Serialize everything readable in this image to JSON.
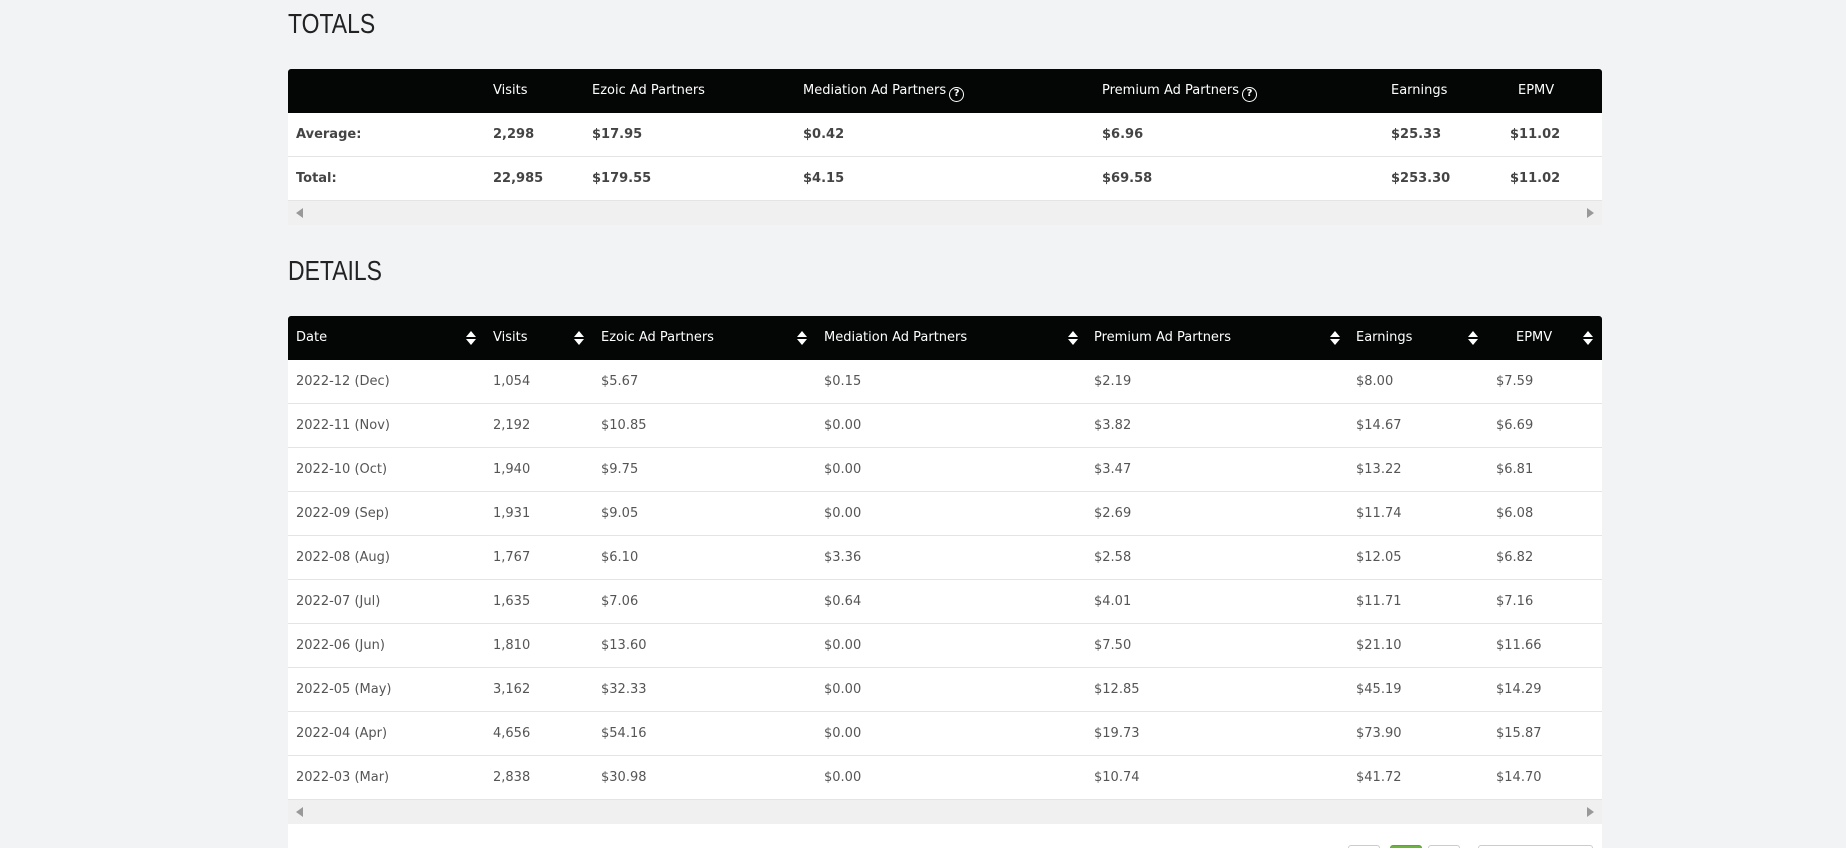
{
  "totals": {
    "title": "TOTALS",
    "headers": [
      "",
      "Visits",
      "Ezoic Ad Partners",
      "Mediation Ad Partners",
      "Premium Ad Partners",
      "Earnings",
      "EPMV"
    ],
    "rows": [
      {
        "label": "Average:",
        "visits": "2,298",
        "ezoic": "$17.95",
        "mediation": "$0.42",
        "premium": "$6.96",
        "earnings": "$25.33",
        "epmv": "$11.02"
      },
      {
        "label": "Total:",
        "visits": "22,985",
        "ezoic": "$179.55",
        "mediation": "$4.15",
        "premium": "$69.58",
        "earnings": "$253.30",
        "epmv": "$11.02"
      }
    ]
  },
  "details": {
    "title": "DETAILS",
    "headers": [
      "Date",
      "Visits",
      "Ezoic Ad Partners",
      "Mediation Ad Partners",
      "Premium Ad Partners",
      "Earnings",
      "EPMV"
    ],
    "rows": [
      {
        "date": "2022-12 (Dec)",
        "visits": "1,054",
        "ezoic": "$5.67",
        "mediation": "$0.15",
        "premium": "$2.19",
        "earnings": "$8.00",
        "epmv": "$7.59"
      },
      {
        "date": "2022-11 (Nov)",
        "visits": "2,192",
        "ezoic": "$10.85",
        "mediation": "$0.00",
        "premium": "$3.82",
        "earnings": "$14.67",
        "epmv": "$6.69"
      },
      {
        "date": "2022-10 (Oct)",
        "visits": "1,940",
        "ezoic": "$9.75",
        "mediation": "$0.00",
        "premium": "$3.47",
        "earnings": "$13.22",
        "epmv": "$6.81"
      },
      {
        "date": "2022-09 (Sep)",
        "visits": "1,931",
        "ezoic": "$9.05",
        "mediation": "$0.00",
        "premium": "$2.69",
        "earnings": "$11.74",
        "epmv": "$6.08"
      },
      {
        "date": "2022-08 (Aug)",
        "visits": "1,767",
        "ezoic": "$6.10",
        "mediation": "$3.36",
        "premium": "$2.58",
        "earnings": "$12.05",
        "epmv": "$6.82"
      },
      {
        "date": "2022-07 (Jul)",
        "visits": "1,635",
        "ezoic": "$7.06",
        "mediation": "$0.64",
        "premium": "$4.01",
        "earnings": "$11.71",
        "epmv": "$7.16"
      },
      {
        "date": "2022-06 (Jun)",
        "visits": "1,810",
        "ezoic": "$13.60",
        "mediation": "$0.00",
        "premium": "$7.50",
        "earnings": "$21.10",
        "epmv": "$11.66"
      },
      {
        "date": "2022-05 (May)",
        "visits": "3,162",
        "ezoic": "$32.33",
        "mediation": "$0.00",
        "premium": "$12.85",
        "earnings": "$45.19",
        "epmv": "$14.29"
      },
      {
        "date": "2022-04 (Apr)",
        "visits": "4,656",
        "ezoic": "$54.16",
        "mediation": "$0.00",
        "premium": "$19.73",
        "earnings": "$73.90",
        "epmv": "$15.87"
      },
      {
        "date": "2022-03 (Mar)",
        "visits": "2,838",
        "ezoic": "$30.98",
        "mediation": "$0.00",
        "premium": "$10.74",
        "earnings": "$41.72",
        "epmv": "$14.70"
      }
    ]
  },
  "icons": {
    "help": "question-circle-icon",
    "sort": "sort-icon",
    "scroll_left": "scroll-left-icon",
    "scroll_right": "scroll-right-icon"
  },
  "colors": {
    "header_bg": "#040505",
    "page_bg": "#f2f3f5",
    "pager_active": "#6cb33f"
  }
}
